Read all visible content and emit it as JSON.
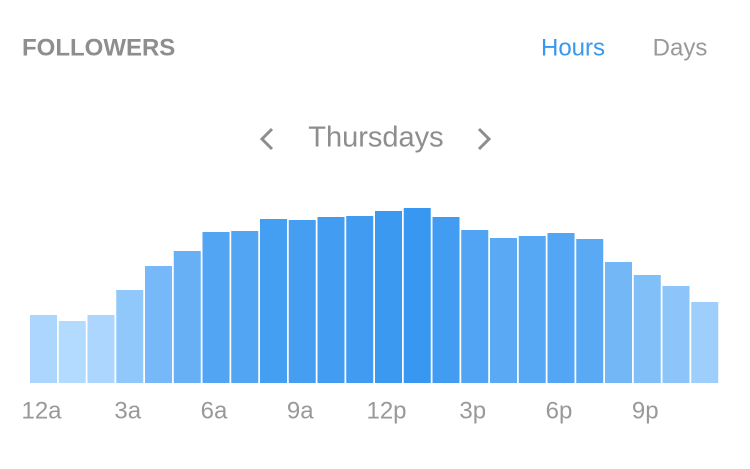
{
  "chart_data": {
    "type": "bar",
    "title": "FOLLOWERS",
    "tabs": [
      "Hours",
      "Days"
    ],
    "subtitle": "Thursdays",
    "categories": [
      "12a",
      null,
      null,
      "3a",
      null,
      null,
      "6a",
      null,
      null,
      "9a",
      null,
      null,
      "12p",
      null,
      null,
      "3p",
      null,
      null,
      "6p",
      null,
      null,
      "9p",
      null,
      null
    ],
    "values": [
      68,
      62,
      68,
      93,
      117,
      132,
      151,
      152,
      164,
      163,
      166,
      167,
      172,
      175,
      166,
      153,
      145,
      147,
      150,
      144,
      121,
      108,
      97,
      81
    ],
    "colors": [
      "#b3daff",
      "#3897f0"
    ],
    "active_tab_color": "#3897f0"
  }
}
